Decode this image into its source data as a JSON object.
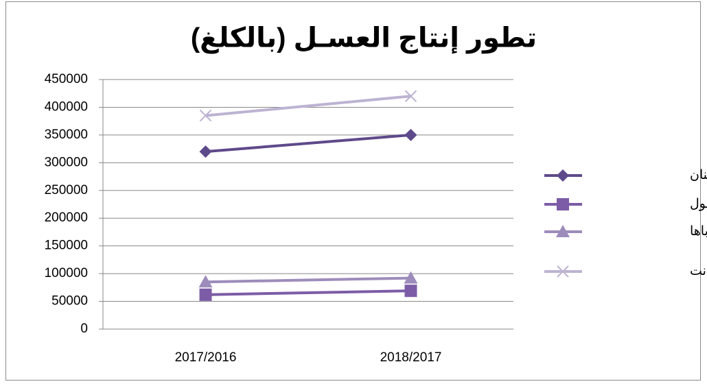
{
  "chart_data": {
    "type": "line",
    "title": "تطور إنتاج العسـل (بالكلغ)",
    "categories": [
      "2017/2016",
      "2018/2017"
    ],
    "series": [
      {
        "name": "أكادير  إداوتنان",
        "color": "#5e4a8a",
        "marker": "diamond",
        "values": [
          320000,
          350000
        ]
      },
      {
        "name": "إنزكان أيت ملول",
        "color": "#7c5ca6",
        "marker": "square",
        "values": [
          62000,
          69000
        ]
      },
      {
        "name": "اشتوكة أيت  باها",
        "color": "#9d8cbb",
        "marker": "triangle",
        "values": [
          85000,
          92000
        ]
      },
      {
        "name": "تـارودانت",
        "color": "#bdb3d2",
        "marker": "x",
        "values": [
          385000,
          420000
        ]
      }
    ],
    "ylim": [
      0,
      450000
    ],
    "yticks": [
      0,
      50000,
      100000,
      150000,
      200000,
      250000,
      300000,
      350000,
      400000,
      450000
    ],
    "grid": true,
    "legend": "right"
  }
}
